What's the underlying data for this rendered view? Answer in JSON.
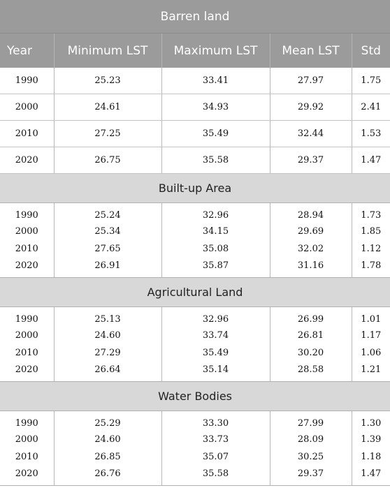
{
  "table": {
    "title": "Barren land",
    "headers": [
      "Year",
      "Minimum LST",
      "Maximum LST",
      "Mean LST",
      "Std"
    ],
    "barren_rows": [
      [
        "1990",
        "25.23",
        "33.41",
        "27.97",
        "1.75"
      ],
      [
        "2000",
        "24.61",
        "34.93",
        "29.92",
        "2.41"
      ],
      [
        "2010",
        "27.25",
        "35.49",
        "32.44",
        "1.53"
      ],
      [
        "2020",
        "26.75",
        "35.58",
        "29.37",
        "1.47"
      ]
    ],
    "sections": [
      {
        "name": "Built-up Area",
        "rows": [
          [
            "1990",
            "25.24",
            "32.96",
            "28.94",
            "1.73"
          ],
          [
            "2000",
            "25.34",
            "34.15",
            "29.69",
            "1.85"
          ],
          [
            "2010",
            "27.65",
            "35.08",
            "32.02",
            "1.12"
          ],
          [
            "2020",
            "26.91",
            "35.87",
            "31.16",
            "1.78"
          ]
        ]
      },
      {
        "name": "Agricultural Land",
        "rows": [
          [
            "1990",
            "25.13",
            "32.96",
            "26.99",
            "1.01"
          ],
          [
            "2000",
            "24.60",
            "33.74",
            "26.81",
            "1.17"
          ],
          [
            "2010",
            "27.29",
            "35.49",
            "30.20",
            "1.06"
          ],
          [
            "2020",
            "26.64",
            "35.14",
            "28.58",
            "1.21"
          ]
        ]
      },
      {
        "name": "Water Bodies",
        "rows": [
          [
            "1990",
            "25.29",
            "33.30",
            "27.99",
            "1.30"
          ],
          [
            "2000",
            "24.60",
            "33.73",
            "28.09",
            "1.39"
          ],
          [
            "2010",
            "26.85",
            "35.07",
            "30.25",
            "1.18"
          ],
          [
            "2020",
            "26.76",
            "35.58",
            "29.37",
            "1.47"
          ]
        ]
      }
    ]
  }
}
